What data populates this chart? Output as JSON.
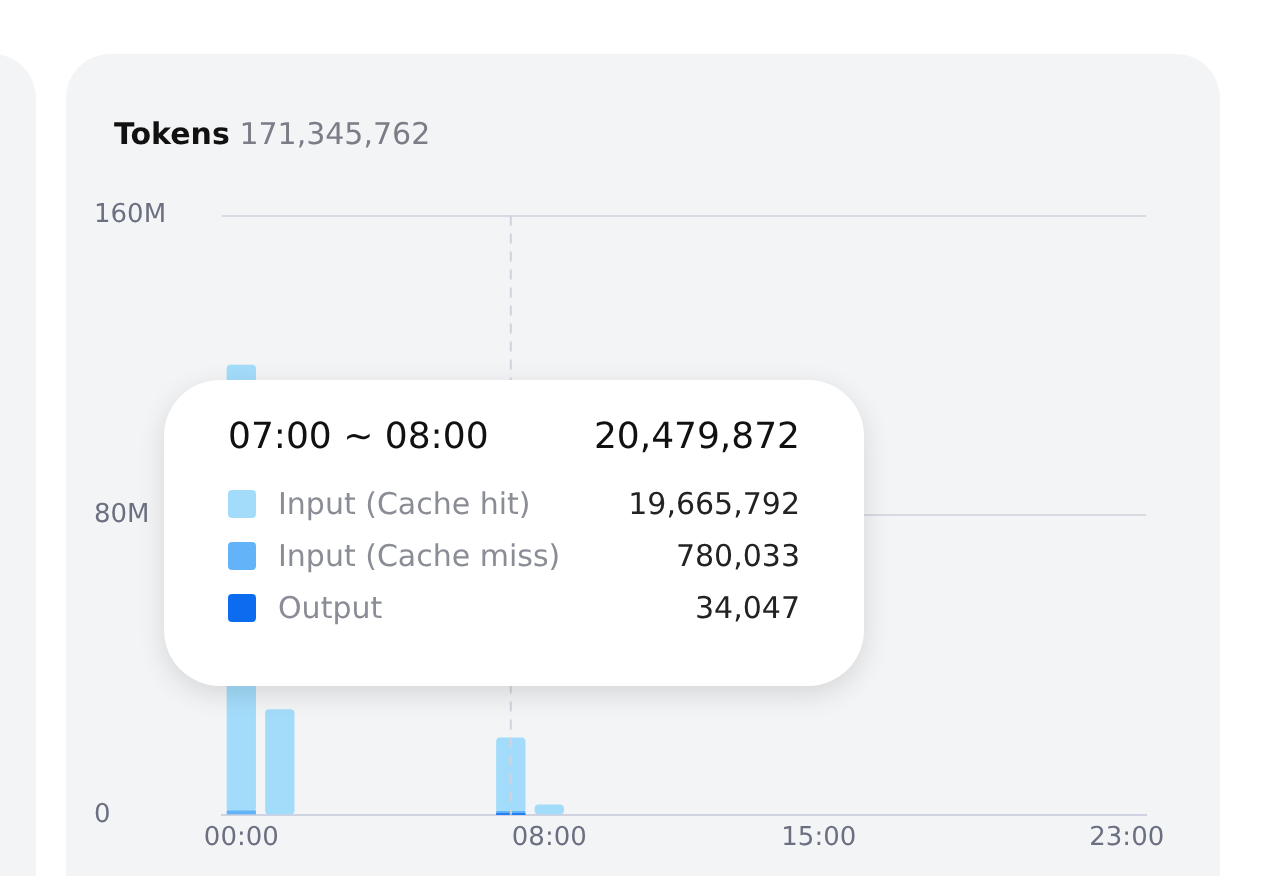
{
  "chart_data": {
    "type": "bar",
    "title": "Tokens",
    "subtitle": "171,345,762",
    "stacked": true,
    "x": [
      0,
      1,
      7,
      8
    ],
    "series": [
      {
        "name": "Output",
        "color": "#0b6cf0",
        "values": [
          null,
          null,
          34047,
          null
        ]
      },
      {
        "name": "Input (Cache miss)",
        "color": "#62b3f8",
        "values": [
          1000000,
          null,
          780033,
          null
        ]
      },
      {
        "name": "Input (Cache hit)",
        "color": "#a3dcfa",
        "values": [
          119000000,
          28000000,
          19665792,
          2600000
        ]
      }
    ],
    "xlim": [
      -0.5,
      23.5
    ],
    "xticks": [
      {
        "value": 0,
        "label": "00:00"
      },
      {
        "value": 8,
        "label": "08:00"
      },
      {
        "value": 15,
        "label": "15:00"
      },
      {
        "value": 23,
        "label": "23:00"
      }
    ],
    "ylim": [
      0,
      160000000
    ],
    "yticks": [
      {
        "value": 0,
        "label": "0"
      },
      {
        "value": 80000000,
        "label": "80M"
      },
      {
        "value": 160000000,
        "label": "160M"
      }
    ],
    "grid": "y",
    "legend": "left",
    "ref_lines": [
      {
        "axis": "x",
        "value": 7,
        "line_style": "dashed",
        "color": "#d0d3dc"
      }
    ],
    "annotations": [
      "07:00 ~ 08:00",
      "20,479,872",
      "19,665,792",
      "780,033",
      "34,047"
    ]
  }
}
